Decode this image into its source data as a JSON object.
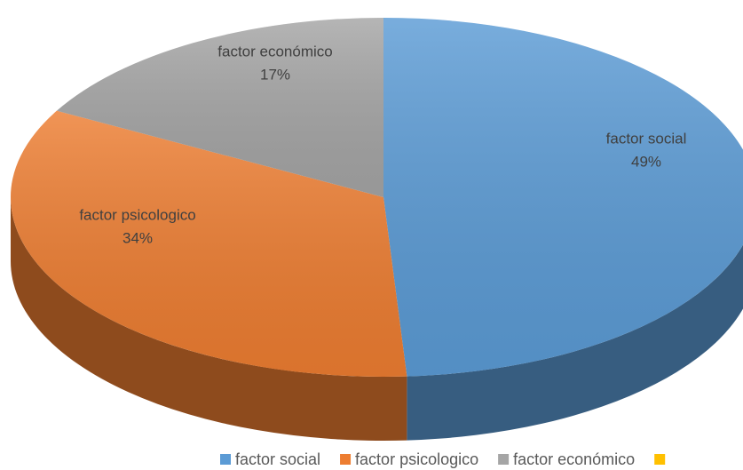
{
  "chart_data": {
    "type": "pie",
    "categories": [
      "factor social",
      "factor psicologico",
      "factor económico",
      null
    ],
    "values": [
      49,
      34,
      17,
      0
    ],
    "value_labels": [
      "49%",
      "34%",
      "17%",
      null
    ],
    "colors": [
      "#5b9bd5",
      "#ed7d31",
      "#a5a5a5",
      "#ffc000"
    ],
    "legend": "bottom"
  }
}
